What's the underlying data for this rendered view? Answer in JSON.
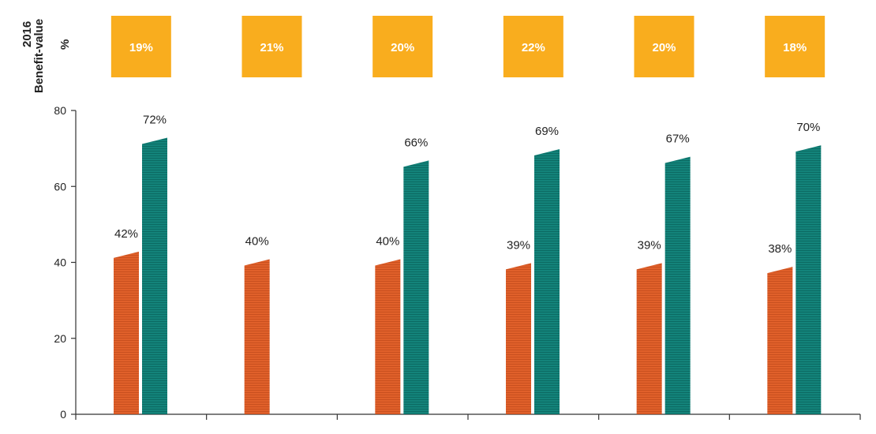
{
  "side_labels": {
    "year": "2016",
    "metric": "Benefit-value",
    "unit": "%"
  },
  "top_row_values": [
    "19%",
    "21%",
    "20%",
    "22%",
    "20%",
    "18%"
  ],
  "colors": {
    "box": "#F9AD1E",
    "box_text": "#ffffff",
    "series1": "#E0602A",
    "series2": "#13837A",
    "axis": "#333333",
    "text": "#222222"
  },
  "chart_data": {
    "type": "bar",
    "categories": [
      "",
      "",
      "",
      "",
      "",
      ""
    ],
    "series": [
      {
        "values": [
          42,
          40,
          40,
          39,
          39,
          38
        ],
        "labels": [
          "42%",
          "40%",
          "40%",
          "39%",
          "39%",
          "38%"
        ]
      },
      {
        "values": [
          72,
          null,
          66,
          69,
          67,
          70
        ],
        "labels": [
          "72%",
          "",
          "66%",
          "69%",
          "67%",
          "70%"
        ]
      }
    ],
    "yticks": [
      "0",
      "20",
      "40",
      "60",
      "80"
    ],
    "ylim": [
      0,
      80
    ],
    "grid": false,
    "legend": "none",
    "xlabel": "",
    "ylabel": ""
  }
}
